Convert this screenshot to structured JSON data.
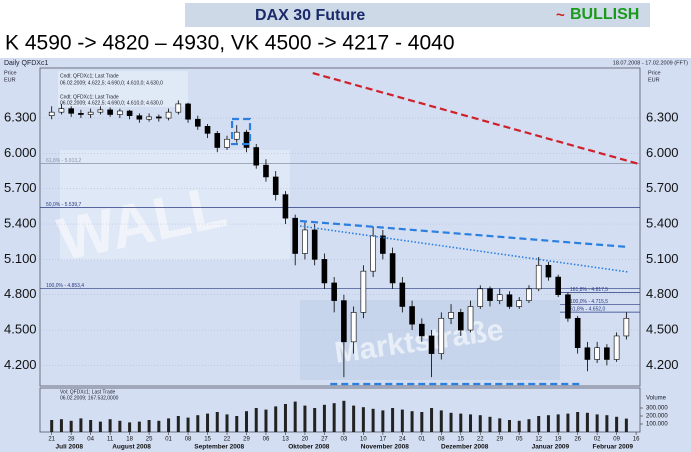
{
  "header": {
    "title": "DAX 30 Future",
    "signal_mark": "~",
    "signal": "BULLISH",
    "targets": "K 4590 -> 4820 – 4930, VK 4500 -> 4217 - 4040"
  },
  "chart_data": {
    "type": "candlestick",
    "title": "Daily QFDXc1",
    "date_range": "18.07.2008 - 17.02.2009 (FFT)",
    "price_label": "Price",
    "currency": "EUR",
    "volume_label": "Volume",
    "info": [
      "Cndl; QFDXc1; Last Trade",
      "06.02.2009; 4.622,5; 4.690,0; 4.610,0; 4.630,0",
      "Cndl; QFDXc1; Last Trade",
      "06.02.2009; 4.622,5; 4.690,0; 4.610,0; 4.630,0",
      "Vol; QFDXc1; Last Trade",
      "06.02.2009; 167.532,0000"
    ],
    "background_texts": [
      "WALL",
      "Marktstraße"
    ],
    "months": [
      "Juli 2008",
      "August 2008",
      "September 2008",
      "Oktober 2008",
      "November 2008",
      "Dezember 2008",
      "Januar 2009",
      "Februar 2009"
    ],
    "xlim": [
      -0.6,
      30.2
    ],
    "xticks": [
      {
        "value": 0,
        "label": "21"
      },
      {
        "value": 1,
        "label": "28"
      },
      {
        "value": 2,
        "label": "04"
      },
      {
        "value": 3,
        "label": "11"
      },
      {
        "value": 4,
        "label": "18"
      },
      {
        "value": 5,
        "label": "25"
      },
      {
        "value": 6,
        "label": "01"
      },
      {
        "value": 7,
        "label": "08"
      },
      {
        "value": 8,
        "label": "15"
      },
      {
        "value": 9,
        "label": "22"
      },
      {
        "value": 10,
        "label": "29"
      },
      {
        "value": 11,
        "label": "06"
      },
      {
        "value": 12,
        "label": "13"
      },
      {
        "value": 13,
        "label": "20"
      },
      {
        "value": 14,
        "label": "27"
      },
      {
        "value": 15,
        "label": "03"
      },
      {
        "value": 16,
        "label": "10"
      },
      {
        "value": 17,
        "label": "17"
      },
      {
        "value": 18,
        "label": "24"
      },
      {
        "value": 19,
        "label": "01"
      },
      {
        "value": 20,
        "label": "08"
      },
      {
        "value": 21,
        "label": "15"
      },
      {
        "value": 22,
        "label": "22"
      },
      {
        "value": 23,
        "label": "29"
      },
      {
        "value": 24,
        "label": "05"
      },
      {
        "value": 25,
        "label": "12"
      },
      {
        "value": 26,
        "label": "19"
      },
      {
        "value": 27,
        "label": "26"
      },
      {
        "value": 28,
        "label": "02"
      },
      {
        "value": 29,
        "label": "09"
      },
      {
        "value": 30,
        "label": "16"
      }
    ],
    "ylim": [
      4025,
      6725
    ],
    "yticks": [
      {
        "value": 4200,
        "label": "4.200"
      },
      {
        "value": 4500,
        "label": "4.500"
      },
      {
        "value": 4800,
        "label": "4.800"
      },
      {
        "value": 5100,
        "label": "5.100"
      },
      {
        "value": 5400,
        "label": "5.400"
      },
      {
        "value": 5700,
        "label": "5.700"
      },
      {
        "value": 6000,
        "label": "6.000"
      },
      {
        "value": 6300,
        "label": "6.300"
      }
    ],
    "vol_ylim": [
      0,
      450000
    ],
    "vol_yticks": [
      {
        "value": 100000,
        "label": "100.000"
      },
      {
        "value": 200000,
        "label": "200.000"
      },
      {
        "value": 300000,
        "label": "300.000"
      }
    ],
    "up_color": "#ffffff",
    "down_color": "#000000",
    "volume_color": "#222222",
    "x": [
      0,
      0.5,
      1,
      1.5,
      2,
      2.5,
      3,
      3.5,
      4,
      4.5,
      5,
      5.5,
      6,
      6.5,
      7,
      7.5,
      8,
      8.5,
      9,
      9.5,
      10,
      10.5,
      11,
      11.5,
      12,
      12.5,
      13,
      13.5,
      14,
      14.5,
      15,
      15.5,
      16,
      16.5,
      17,
      17.5,
      18,
      18.5,
      19,
      19.5,
      20,
      20.5,
      21,
      21.5,
      22,
      22.5,
      23,
      23.5,
      24,
      24.5,
      25,
      25.5,
      26,
      26.5,
      27,
      27.5,
      28,
      28.5,
      29,
      29.5
    ],
    "candles": [
      [
        6320,
        6400,
        6290,
        6350
      ],
      [
        6350,
        6420,
        6330,
        6380
      ],
      [
        6380,
        6400,
        6310,
        6340
      ],
      [
        6340,
        6370,
        6300,
        6330
      ],
      [
        6330,
        6380,
        6300,
        6350
      ],
      [
        6350,
        6400,
        6330,
        6370
      ],
      [
        6370,
        6390,
        6310,
        6330
      ],
      [
        6330,
        6380,
        6300,
        6360
      ],
      [
        6360,
        6370,
        6290,
        6320
      ],
      [
        6320,
        6340,
        6260,
        6290
      ],
      [
        6290,
        6340,
        6270,
        6310
      ],
      [
        6310,
        6330,
        6270,
        6300
      ],
      [
        6300,
        6380,
        6280,
        6350
      ],
      [
        6350,
        6450,
        6330,
        6420
      ],
      [
        6420,
        6430,
        6260,
        6290
      ],
      [
        6290,
        6320,
        6200,
        6230
      ],
      [
        6230,
        6250,
        6130,
        6170
      ],
      [
        6170,
        6190,
        6010,
        6050
      ],
      [
        6050,
        6150,
        6030,
        6120
      ],
      [
        6120,
        6240,
        6090,
        6180
      ],
      [
        6180,
        6200,
        6010,
        6050
      ],
      [
        6050,
        6080,
        5870,
        5900
      ],
      [
        5900,
        5950,
        5760,
        5800
      ],
      [
        5800,
        5850,
        5600,
        5650
      ],
      [
        5650,
        5680,
        5400,
        5450
      ],
      [
        5450,
        5480,
        5050,
        5150
      ],
      [
        5150,
        5420,
        5100,
        5350
      ],
      [
        5350,
        5400,
        5050,
        5100
      ],
      [
        5100,
        5150,
        4850,
        4900
      ],
      [
        4900,
        4950,
        4650,
        4750
      ],
      [
        4750,
        4800,
        4100,
        4400
      ],
      [
        4400,
        4700,
        4300,
        4650
      ],
      [
        4650,
        5050,
        4600,
        5000
      ],
      [
        5000,
        5380,
        4950,
        5300
      ],
      [
        5300,
        5350,
        5100,
        5150
      ],
      [
        5150,
        5200,
        4850,
        4900
      ],
      [
        4900,
        4950,
        4650,
        4700
      ],
      [
        4700,
        4750,
        4500,
        4550
      ],
      [
        4550,
        4600,
        4400,
        4450
      ],
      [
        4450,
        4500,
        4100,
        4300
      ],
      [
        4300,
        4650,
        4250,
        4600
      ],
      [
        4600,
        4720,
        4550,
        4650
      ],
      [
        4650,
        4680,
        4450,
        4500
      ],
      [
        4500,
        4750,
        4480,
        4700
      ],
      [
        4700,
        4880,
        4680,
        4850
      ],
      [
        4850,
        4870,
        4700,
        4750
      ],
      [
        4750,
        4850,
        4720,
        4800
      ],
      [
        4800,
        4830,
        4680,
        4700
      ],
      [
        4700,
        4780,
        4680,
        4750
      ],
      [
        4750,
        4880,
        4730,
        4850
      ],
      [
        4850,
        5120,
        4830,
        5050
      ],
      [
        5050,
        5080,
        4920,
        4950
      ],
      [
        4950,
        4970,
        4780,
        4800
      ],
      [
        4800,
        4820,
        4570,
        4600
      ],
      [
        4600,
        4620,
        4300,
        4350
      ],
      [
        4350,
        4400,
        4150,
        4250
      ],
      [
        4250,
        4400,
        4220,
        4350
      ],
      [
        4350,
        4380,
        4200,
        4250
      ],
      [
        4250,
        4480,
        4230,
        4450
      ],
      [
        4450,
        4650,
        4420,
        4600
      ]
    ],
    "volume": [
      150000,
      160000,
      140000,
      170000,
      150000,
      130000,
      160000,
      140000,
      120000,
      130000,
      150000,
      140000,
      170000,
      200000,
      180000,
      210000,
      230000,
      250000,
      220000,
      200000,
      260000,
      300000,
      280000,
      320000,
      350000,
      380000,
      330000,
      300000,
      340000,
      360000,
      390000,
      330000,
      310000,
      290000,
      270000,
      300000,
      280000,
      260000,
      250000,
      300000,
      270000,
      240000,
      230000,
      220000,
      210000,
      190000,
      170000,
      150000,
      140000,
      160000,
      200000,
      210000,
      220000,
      230000,
      250000,
      240000,
      220000,
      210000,
      190000,
      167532
    ],
    "levels": [
      {
        "label": "61,8% - 5.913,2",
        "value": 5913.2,
        "side": "full",
        "color": "#8a94a8"
      },
      {
        "label": "50,0% - 5.539,7",
        "value": 5539.7,
        "side": "full",
        "color": "#2a3a80"
      },
      {
        "label": "100,0% - 4.853,4",
        "value": 4853.4,
        "side": "full",
        "color": "#2a3a80"
      },
      {
        "label": "161,8% - 4.817,5",
        "value": 4817.5,
        "side": "right",
        "color": "#2a3a80"
      },
      {
        "label": "100,0% - 4.715,5",
        "value": 4715.5,
        "side": "right",
        "color": "#2a3a80"
      },
      {
        "label": "61,8% - 4.652,0",
        "value": 4652,
        "side": "right",
        "color": "#2a3a80"
      }
    ],
    "lines": [
      {
        "color": "#d0202a",
        "style": "dashed",
        "x": [
          13.4,
          30.15
        ],
        "y": [
          6682,
          5910
        ]
      },
      {
        "color": "#2a7fe0",
        "style": "dashed",
        "x": [
          12.75,
          29.6
        ],
        "y": [
          5426,
          5205
        ]
      },
      {
        "color": "#2a7fe0",
        "style": "dotted",
        "x": [
          12.75,
          29.6
        ],
        "y": [
          5384,
          4993
        ]
      },
      {
        "color": "#2a7fe0",
        "style": "dashed",
        "x": [
          14.3,
          27.1
        ],
        "y": [
          4042,
          4042
        ]
      },
      {
        "color": "#2a7fe0",
        "style": "dashed",
        "x": [
          9.26,
          10.18,
          10.18,
          9.26,
          9.26
        ],
        "y": [
          6292,
          6292,
          6079,
          6079,
          6292
        ]
      }
    ]
  }
}
